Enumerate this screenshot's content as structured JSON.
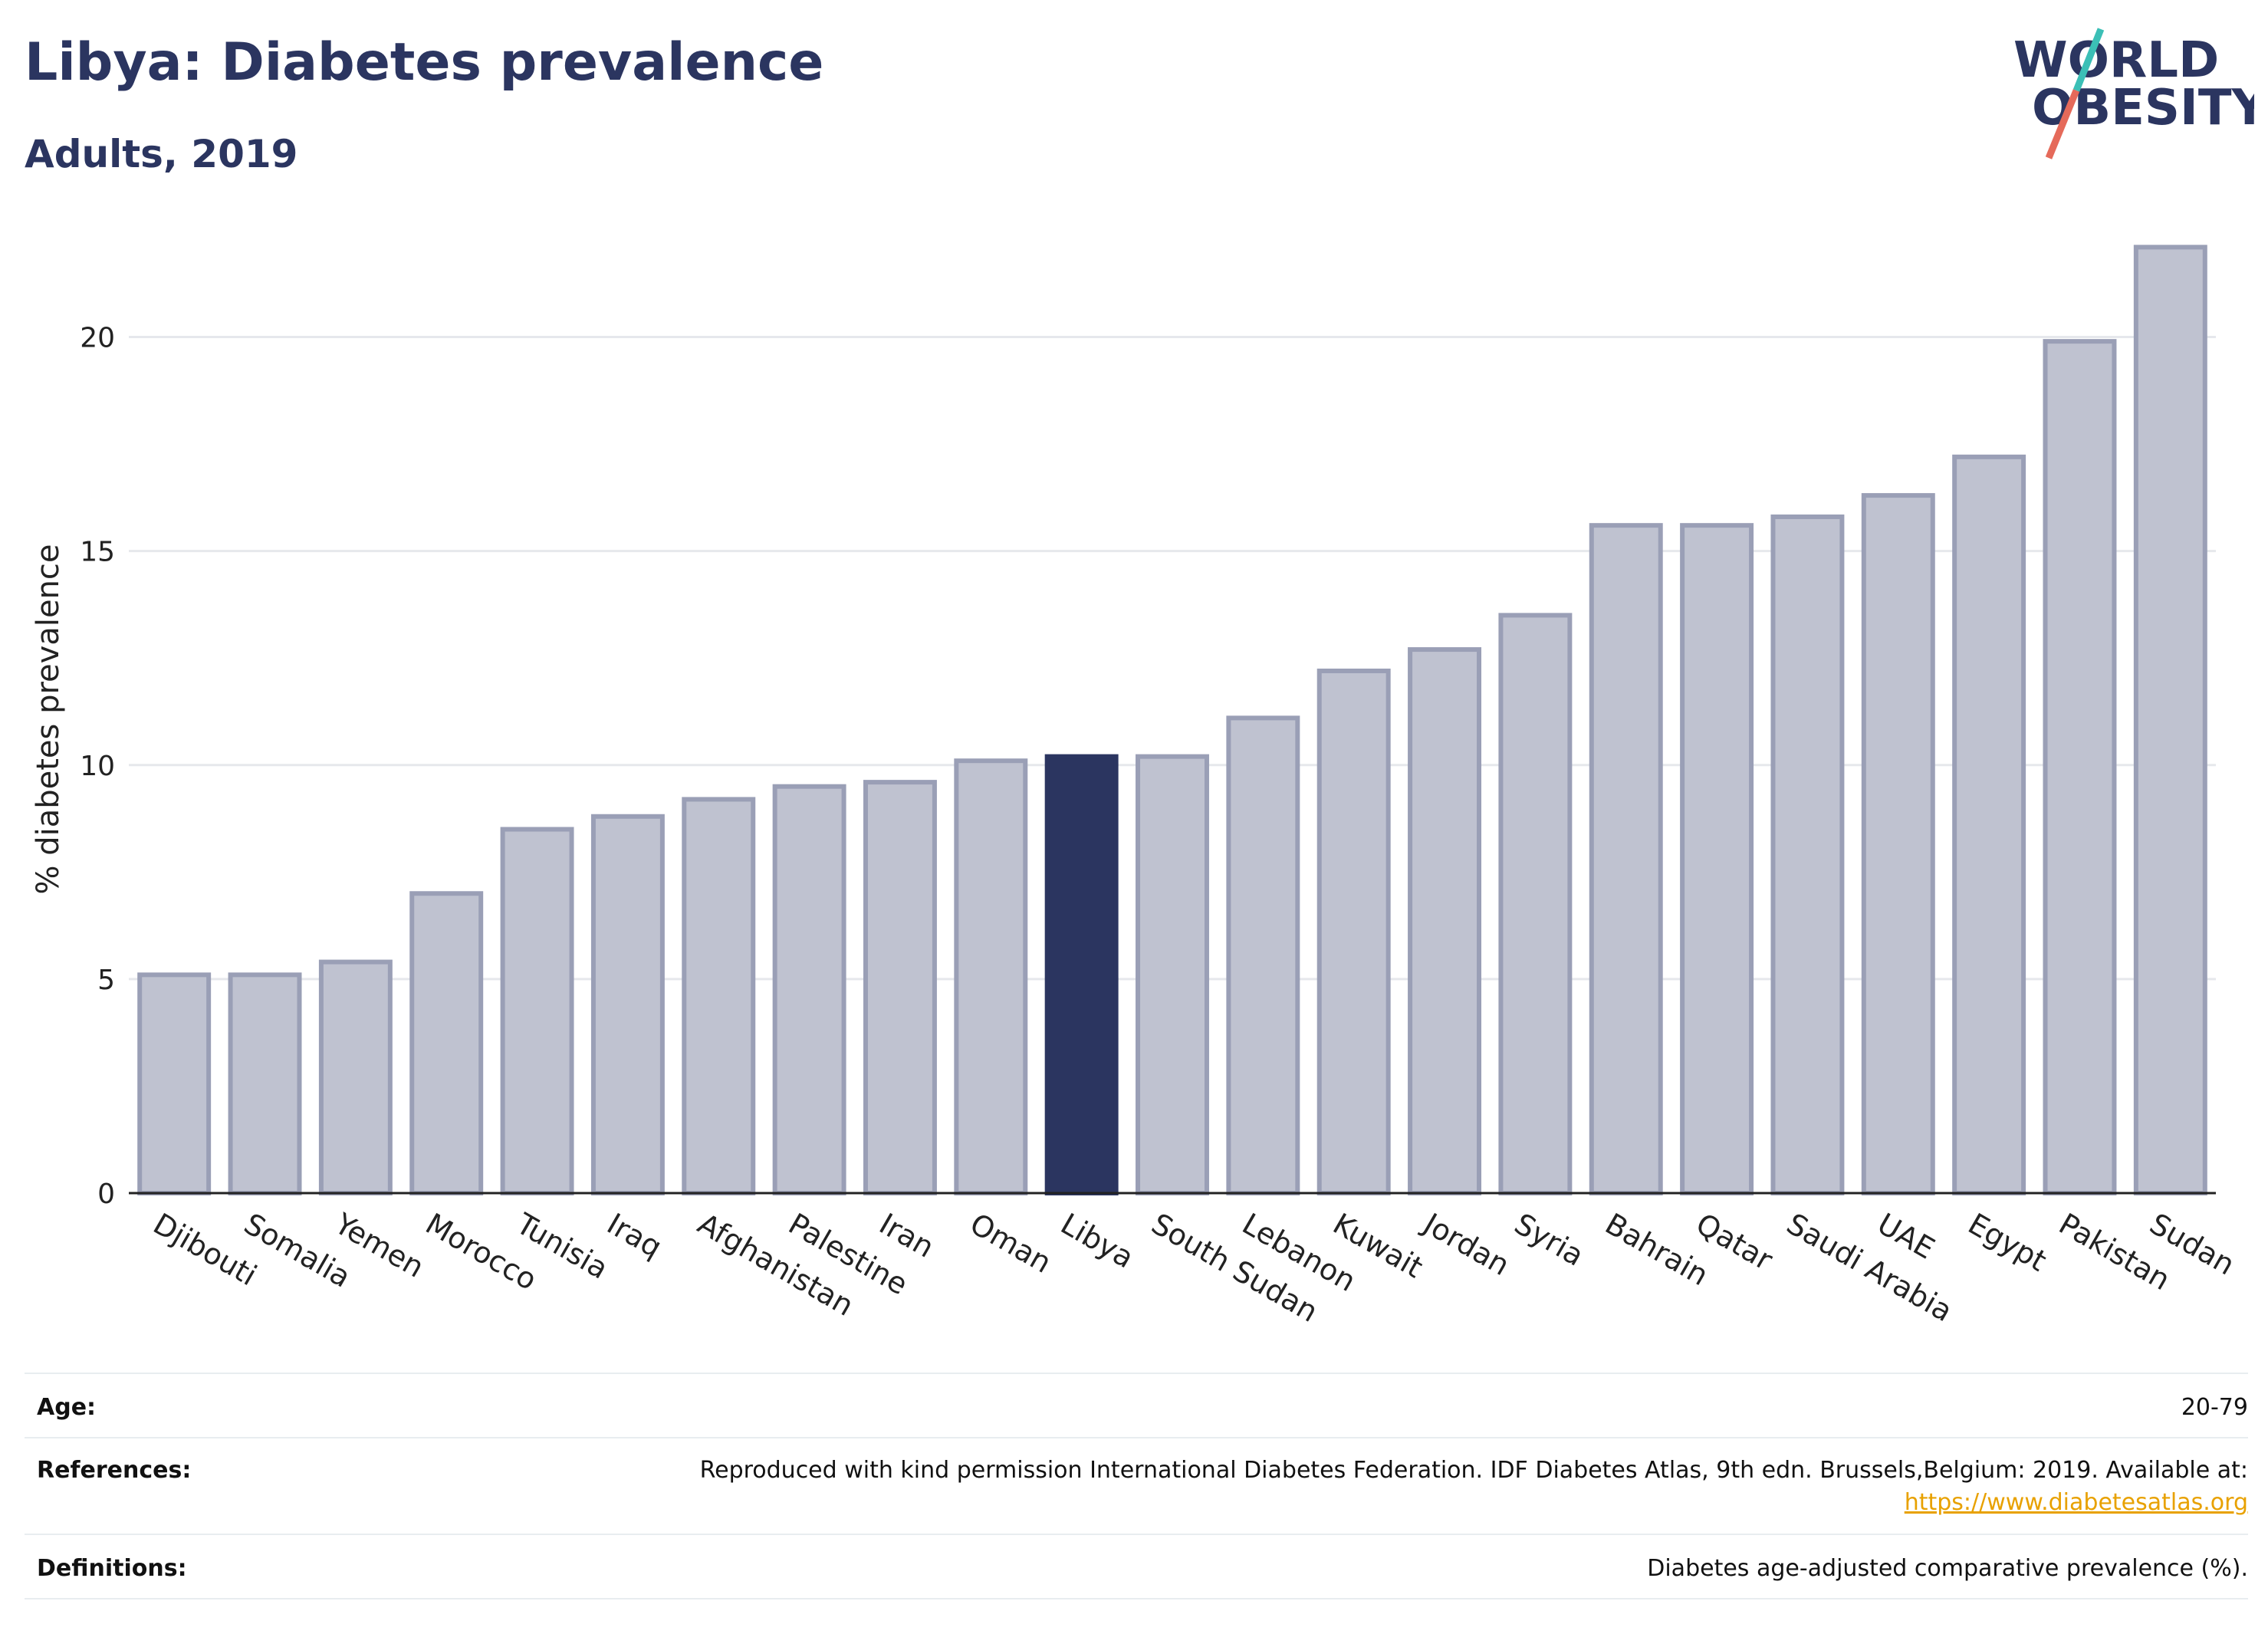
{
  "header": {
    "title": "Libya: Diabetes prevalence",
    "subtitle": "Adults, 2019"
  },
  "logo": {
    "line1": "WORLD",
    "line2": "OBESITY",
    "accent_top": "#3bbfb6",
    "accent_bottom": "#e56a5a"
  },
  "chart_data": {
    "type": "bar",
    "categories": [
      "Djibouti",
      "Somalia",
      "Yemen",
      "Morocco",
      "Tunisia",
      "Iraq",
      "Afghanistan",
      "Palestine",
      "Iran",
      "Oman",
      "Libya",
      "South Sudan",
      "Lebanon",
      "Kuwait",
      "Jordan",
      "Syria",
      "Bahrain",
      "Qatar",
      "Saudi Arabia",
      "UAE",
      "Egypt",
      "Pakistan",
      "Sudan"
    ],
    "values": [
      5.1,
      5.1,
      5.4,
      7.0,
      8.5,
      8.8,
      9.2,
      9.5,
      9.6,
      10.1,
      10.2,
      10.2,
      11.1,
      12.2,
      12.7,
      13.5,
      15.6,
      15.6,
      15.8,
      16.3,
      17.2,
      19.9,
      22.1
    ],
    "highlight": "Libya",
    "ylabel": "% diabetes prevalence",
    "xlabel": "",
    "ylim": [
      0,
      22.5
    ],
    "yticks": [
      0,
      5,
      10,
      15,
      20
    ],
    "grid": true,
    "colors": {
      "bar_fill": "#bfc2d0",
      "bar_stroke": "#9a9fb6",
      "highlight_fill": "#2b3560",
      "grid": "#e6e8ec",
      "axis": "#222222"
    }
  },
  "meta": {
    "age_label": "Age:",
    "age_value": "20-79",
    "references_label": "References:",
    "references_value": "Reproduced with kind permission International Diabetes Federation. IDF Diabetes Atlas, 9th edn. Brussels,Belgium: 2019. Available at:",
    "references_link": "https://www.diabetesatlas.org",
    "definitions_label": "Definitions:",
    "definitions_value": "Diabetes age-adjusted comparative prevalence (%)."
  }
}
